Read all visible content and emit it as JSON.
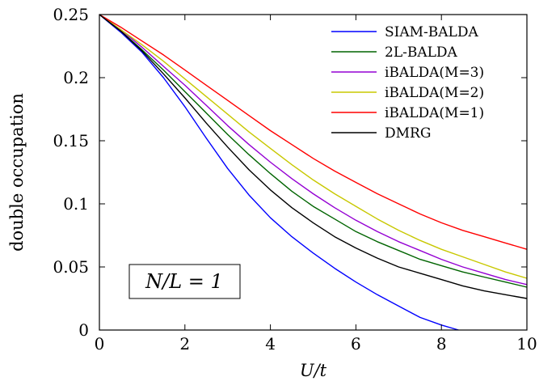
{
  "chart_data": {
    "type": "line",
    "xlabel": "U/t",
    "ylabel": "double occupation",
    "xlim": [
      0,
      10
    ],
    "ylim": [
      0,
      0.25
    ],
    "xticks": [
      0,
      2,
      4,
      6,
      8,
      10
    ],
    "xtick_labels": [
      "0",
      "2",
      "4",
      "6",
      "8",
      "10"
    ],
    "yticks": [
      0,
      0.05,
      0.1,
      0.15,
      0.2,
      0.25
    ],
    "ytick_labels": [
      "0",
      "0.05",
      "0.1",
      "0.15",
      "0.2",
      "0.25"
    ],
    "grid": false,
    "legend_position": "top-right",
    "annotation": "N/L = 1",
    "series": [
      {
        "name": "SIAM-BALDA",
        "color": "#0000ff",
        "x": [
          0,
          0.5,
          1,
          1.5,
          2,
          2.5,
          3,
          3.5,
          4,
          4.5,
          5,
          5.5,
          6,
          6.5,
          7,
          7.5,
          8,
          8.4
        ],
        "y": [
          0.25,
          0.236,
          0.22,
          0.2,
          0.177,
          0.152,
          0.128,
          0.107,
          0.089,
          0.074,
          0.061,
          0.049,
          0.038,
          0.028,
          0.019,
          0.01,
          0.004,
          0
        ]
      },
      {
        "name": "2L-BALDA",
        "color": "#006400",
        "x": [
          0,
          0.5,
          1,
          1.5,
          2,
          2.5,
          3,
          3.5,
          4,
          4.5,
          5,
          5.5,
          6,
          6.5,
          7,
          7.5,
          8,
          8.5,
          9,
          9.5,
          10
        ],
        "y": [
          0.25,
          0.237,
          0.222,
          0.206,
          0.189,
          0.172,
          0.155,
          0.139,
          0.124,
          0.11,
          0.098,
          0.088,
          0.078,
          0.07,
          0.063,
          0.056,
          0.051,
          0.046,
          0.042,
          0.038,
          0.034
        ]
      },
      {
        "name": "iBALDA(M=3)",
        "color": "#9400d3",
        "x": [
          0,
          0.5,
          1,
          1.5,
          2,
          2.5,
          3,
          3.5,
          4,
          4.5,
          5,
          5.5,
          6,
          6.5,
          7,
          7.5,
          8,
          8.5,
          9,
          9.5,
          10
        ],
        "y": [
          0.25,
          0.238,
          0.224,
          0.209,
          0.194,
          0.178,
          0.162,
          0.147,
          0.133,
          0.12,
          0.108,
          0.097,
          0.087,
          0.078,
          0.07,
          0.063,
          0.056,
          0.05,
          0.045,
          0.04,
          0.036
        ]
      },
      {
        "name": "iBALDA(M=2)",
        "color": "#c8c800",
        "x": [
          0,
          0.5,
          1,
          1.5,
          2,
          2.5,
          3,
          3.5,
          4,
          4.5,
          5,
          5.5,
          6,
          6.5,
          7,
          7.5,
          8,
          8.5,
          9,
          9.5,
          10
        ],
        "y": [
          0.25,
          0.238,
          0.226,
          0.213,
          0.199,
          0.185,
          0.171,
          0.157,
          0.144,
          0.131,
          0.119,
          0.108,
          0.098,
          0.088,
          0.079,
          0.071,
          0.064,
          0.058,
          0.052,
          0.046,
          0.041
        ]
      },
      {
        "name": "iBALDA(M=1)",
        "color": "#ff0000",
        "x": [
          0,
          0.5,
          1,
          1.5,
          2,
          2.5,
          3,
          3.5,
          4,
          4.5,
          5,
          5.5,
          6,
          6.5,
          7,
          7.5,
          8,
          8.5,
          9,
          9.5,
          10
        ],
        "y": [
          0.25,
          0.24,
          0.229,
          0.218,
          0.206,
          0.194,
          0.182,
          0.17,
          0.158,
          0.147,
          0.136,
          0.126,
          0.117,
          0.108,
          0.1,
          0.092,
          0.085,
          0.079,
          0.074,
          0.069,
          0.064
        ]
      },
      {
        "name": "DMRG",
        "color": "#000000",
        "x": [
          0,
          0.5,
          1,
          1.5,
          2,
          2.5,
          3,
          3.5,
          4,
          4.5,
          5,
          5.5,
          6,
          6.5,
          7,
          7.5,
          8,
          8.5,
          9,
          9.5,
          10
        ],
        "y": [
          0.25,
          0.237,
          0.221,
          0.203,
          0.184,
          0.164,
          0.145,
          0.127,
          0.111,
          0.097,
          0.085,
          0.074,
          0.065,
          0.057,
          0.05,
          0.045,
          0.04,
          0.035,
          0.031,
          0.028,
          0.025
        ]
      }
    ]
  }
}
